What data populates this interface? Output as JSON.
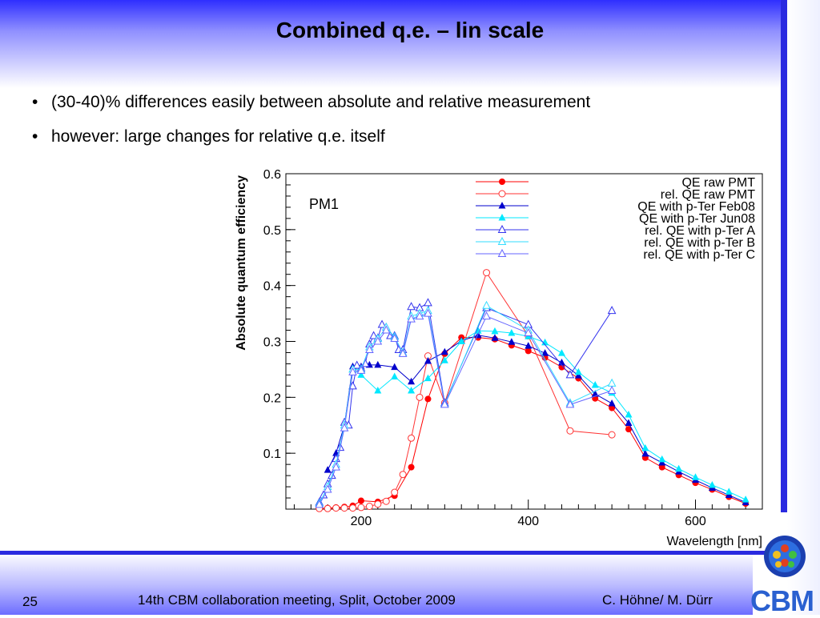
{
  "slide": {
    "title": "Combined q.e. – lin scale",
    "bullets": [
      "(30-40)% differences easily between absolute and relative measurement",
      "however: large changes for relative q.e. itself"
    ],
    "footer": {
      "page": "25",
      "event": "14th CBM collaboration meeting, Split, October 2009",
      "authors": "C. Höhne/ M. Dürr"
    },
    "logo_text": "CBM"
  },
  "chart_data": {
    "type": "line",
    "annotation": "PM1",
    "xlabel": "Wavelength [nm]",
    "ylabel": "Absolute quantum efficiency",
    "xlim": [
      110,
      680
    ],
    "ylim": [
      0,
      0.6
    ],
    "xticks": [
      200,
      400,
      600
    ],
    "yticks": [
      0.1,
      0.2,
      0.3,
      0.4,
      0.5,
      0.6
    ],
    "ytick_labels": [
      "0.1",
      "0.2",
      "0.3",
      "0.4",
      "0.5",
      "0.6"
    ],
    "grid": false,
    "legend_position": "top-right",
    "series": [
      {
        "name": "QE raw PMT",
        "color": "#ff0000",
        "marker": "circle-filled",
        "x": [
          150,
          160,
          170,
          180,
          190,
          200,
          220,
          240,
          260,
          280,
          300,
          320,
          340,
          360,
          380,
          400,
          420,
          440,
          460,
          480,
          500,
          520,
          540,
          560,
          580,
          600,
          620,
          640,
          660
        ],
        "y": [
          0.001,
          0.002,
          0.003,
          0.004,
          0.006,
          0.015,
          0.013,
          0.024,
          0.075,
          0.197,
          0.278,
          0.307,
          0.307,
          0.304,
          0.293,
          0.283,
          0.271,
          0.254,
          0.234,
          0.198,
          0.181,
          0.143,
          0.092,
          0.075,
          0.061,
          0.047,
          0.035,
          0.022,
          0.01
        ]
      },
      {
        "name": "rel. QE raw PMT",
        "color": "#ff3333",
        "marker": "circle-open",
        "x": [
          150,
          160,
          170,
          180,
          190,
          200,
          210,
          220,
          230,
          240,
          250,
          260,
          270,
          280,
          300,
          350,
          400,
          450,
          500
        ],
        "y": [
          0.001,
          0.001,
          0.002,
          0.002,
          0.002,
          0.003,
          0.005,
          0.009,
          0.014,
          0.03,
          0.062,
          0.127,
          0.2,
          0.274,
          0.19,
          0.423,
          0.31,
          0.14,
          0.133
        ]
      },
      {
        "name": "QE with p-Ter Feb08",
        "color": "#0000cc",
        "marker": "triangle-filled",
        "x": [
          160,
          170,
          180,
          190,
          200,
          210,
          220,
          240,
          260,
          280,
          300,
          320,
          340,
          360,
          380,
          400,
          420,
          440,
          460,
          480,
          500,
          520,
          540,
          560,
          580,
          600,
          620,
          640,
          660
        ],
        "y": [
          0.07,
          0.1,
          0.15,
          0.255,
          0.255,
          0.258,
          0.258,
          0.254,
          0.228,
          0.265,
          0.281,
          0.301,
          0.311,
          0.306,
          0.299,
          0.292,
          0.279,
          0.262,
          0.239,
          0.206,
          0.189,
          0.154,
          0.099,
          0.083,
          0.067,
          0.052,
          0.038,
          0.025,
          0.012
        ]
      },
      {
        "name": "QE with p-Ter Jun08",
        "color": "#00e8ff",
        "marker": "triangle-filled",
        "x": [
          200,
          220,
          240,
          260,
          280,
          300,
          320,
          340,
          360,
          380,
          400,
          420,
          440,
          460,
          480,
          500,
          520,
          540,
          560,
          580,
          600,
          620,
          640,
          660
        ],
        "y": [
          0.24,
          0.212,
          0.237,
          0.212,
          0.234,
          0.266,
          0.3,
          0.319,
          0.318,
          0.315,
          0.309,
          0.298,
          0.279,
          0.245,
          0.222,
          0.208,
          0.169,
          0.109,
          0.089,
          0.072,
          0.057,
          0.043,
          0.031,
          0.017
        ]
      },
      {
        "name": "rel. QE with p-Ter A",
        "color": "#3333ee",
        "marker": "triangle-open",
        "x": [
          150,
          155,
          160,
          165,
          170,
          175,
          180,
          185,
          190,
          195,
          200,
          205,
          210,
          215,
          220,
          225,
          230,
          235,
          240,
          245,
          250,
          260,
          270,
          280,
          300,
          350,
          400,
          450,
          500
        ],
        "y": [
          0.012,
          0.025,
          0.045,
          0.06,
          0.09,
          0.11,
          0.155,
          0.15,
          0.22,
          0.257,
          0.252,
          0.26,
          0.295,
          0.31,
          0.306,
          0.33,
          0.325,
          0.31,
          0.31,
          0.285,
          0.285,
          0.362,
          0.36,
          0.369,
          0.19,
          0.36,
          0.33,
          0.24,
          0.355
        ]
      },
      {
        "name": "rel. QE with p-Ter B",
        "color": "#33ddff",
        "marker": "triangle-open",
        "x": [
          150,
          160,
          170,
          180,
          190,
          200,
          210,
          220,
          230,
          240,
          250,
          260,
          270,
          280,
          300,
          350,
          400,
          450,
          500
        ],
        "y": [
          0.01,
          0.04,
          0.08,
          0.15,
          0.25,
          0.25,
          0.29,
          0.305,
          0.325,
          0.308,
          0.28,
          0.345,
          0.35,
          0.355,
          0.188,
          0.364,
          0.32,
          0.19,
          0.225
        ]
      },
      {
        "name": "rel. QE with p-Ter C",
        "color": "#6666ff",
        "marker": "triangle-open",
        "x": [
          150,
          160,
          170,
          180,
          190,
          200,
          210,
          220,
          230,
          240,
          250,
          260,
          270,
          280,
          300,
          350,
          400,
          450,
          500
        ],
        "y": [
          0.008,
          0.035,
          0.075,
          0.145,
          0.245,
          0.248,
          0.285,
          0.3,
          0.32,
          0.305,
          0.278,
          0.34,
          0.345,
          0.35,
          0.187,
          0.345,
          0.315,
          0.187,
          0.212
        ]
      }
    ]
  }
}
